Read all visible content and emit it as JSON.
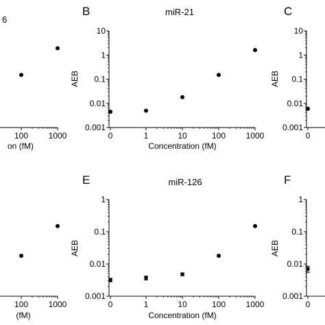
{
  "chart_data": [
    {
      "panel_letter": "",
      "title": "6",
      "type": "scatter",
      "xlabel": "on (fM)",
      "ylabel": "",
      "xticks": [
        "100",
        "1000"
      ],
      "yticks": [],
      "x_scale": "log",
      "y_scale": "log",
      "x": [
        100,
        1000
      ],
      "values": [
        0.15,
        1.9
      ],
      "errors": [
        0,
        0
      ]
    },
    {
      "panel_letter": "B",
      "title": "miR-21",
      "type": "scatter",
      "xlabel": "Concentration (fM)",
      "ylabel": "AEB",
      "xticks": [
        "0",
        "1",
        "10",
        "100",
        "1000"
      ],
      "yticks": [
        "0.001",
        "0.01",
        "0.1",
        "1",
        "10"
      ],
      "ylim": [
        0.001,
        10
      ],
      "x_scale": "log",
      "y_scale": "log",
      "x": [
        0,
        1,
        10,
        100,
        1000
      ],
      "values": [
        0.0045,
        0.005,
        0.018,
        0.15,
        1.6
      ],
      "errors": [
        0,
        0,
        0,
        0,
        0
      ]
    },
    {
      "panel_letter": "C",
      "title": "",
      "type": "scatter",
      "xlabel": "",
      "ylabel": "AEB",
      "xticks": [
        "0"
      ],
      "yticks": [
        "0.001",
        "0.01",
        "0.1",
        "1",
        "10"
      ],
      "ylim": [
        0.001,
        10
      ],
      "x_scale": "log",
      "y_scale": "log",
      "x": [
        0
      ],
      "values": [
        0.006
      ],
      "errors": [
        0
      ]
    },
    {
      "panel_letter": "",
      "title": "",
      "type": "scatter",
      "xlabel": "(fM)",
      "ylabel": "",
      "xticks": [
        "100",
        "1000"
      ],
      "yticks": [],
      "x_scale": "log",
      "y_scale": "log",
      "x": [
        100,
        1000
      ],
      "values": [
        0.018,
        0.15
      ],
      "errors": [
        0,
        0
      ]
    },
    {
      "panel_letter": "E",
      "title": "miR-126",
      "type": "scatter",
      "xlabel": "Concentration (fM)",
      "ylabel": "AEB",
      "xticks": [
        "0",
        "1",
        "10",
        "100",
        "1000"
      ],
      "yticks": [
        "0.001",
        "0.01",
        "0.1",
        "1"
      ],
      "ylim": [
        0.001,
        1
      ],
      "x_scale": "log",
      "y_scale": "log",
      "x": [
        0,
        1,
        10,
        100,
        1000
      ],
      "values": [
        0.0032,
        0.0037,
        0.0048,
        0.018,
        0.15
      ],
      "errors": [
        0.0004,
        0.0005,
        0.0005,
        0,
        0
      ]
    },
    {
      "panel_letter": "F",
      "title": "",
      "type": "scatter",
      "xlabel": "",
      "ylabel": "AEB",
      "xticks": [
        "0"
      ],
      "yticks": [
        "0.001",
        "0.01",
        "0.1",
        "1"
      ],
      "ylim": [
        0.001,
        1
      ],
      "x_scale": "log",
      "y_scale": "log",
      "x": [
        0
      ],
      "values": [
        0.007
      ],
      "errors": [
        0.0015
      ]
    }
  ]
}
